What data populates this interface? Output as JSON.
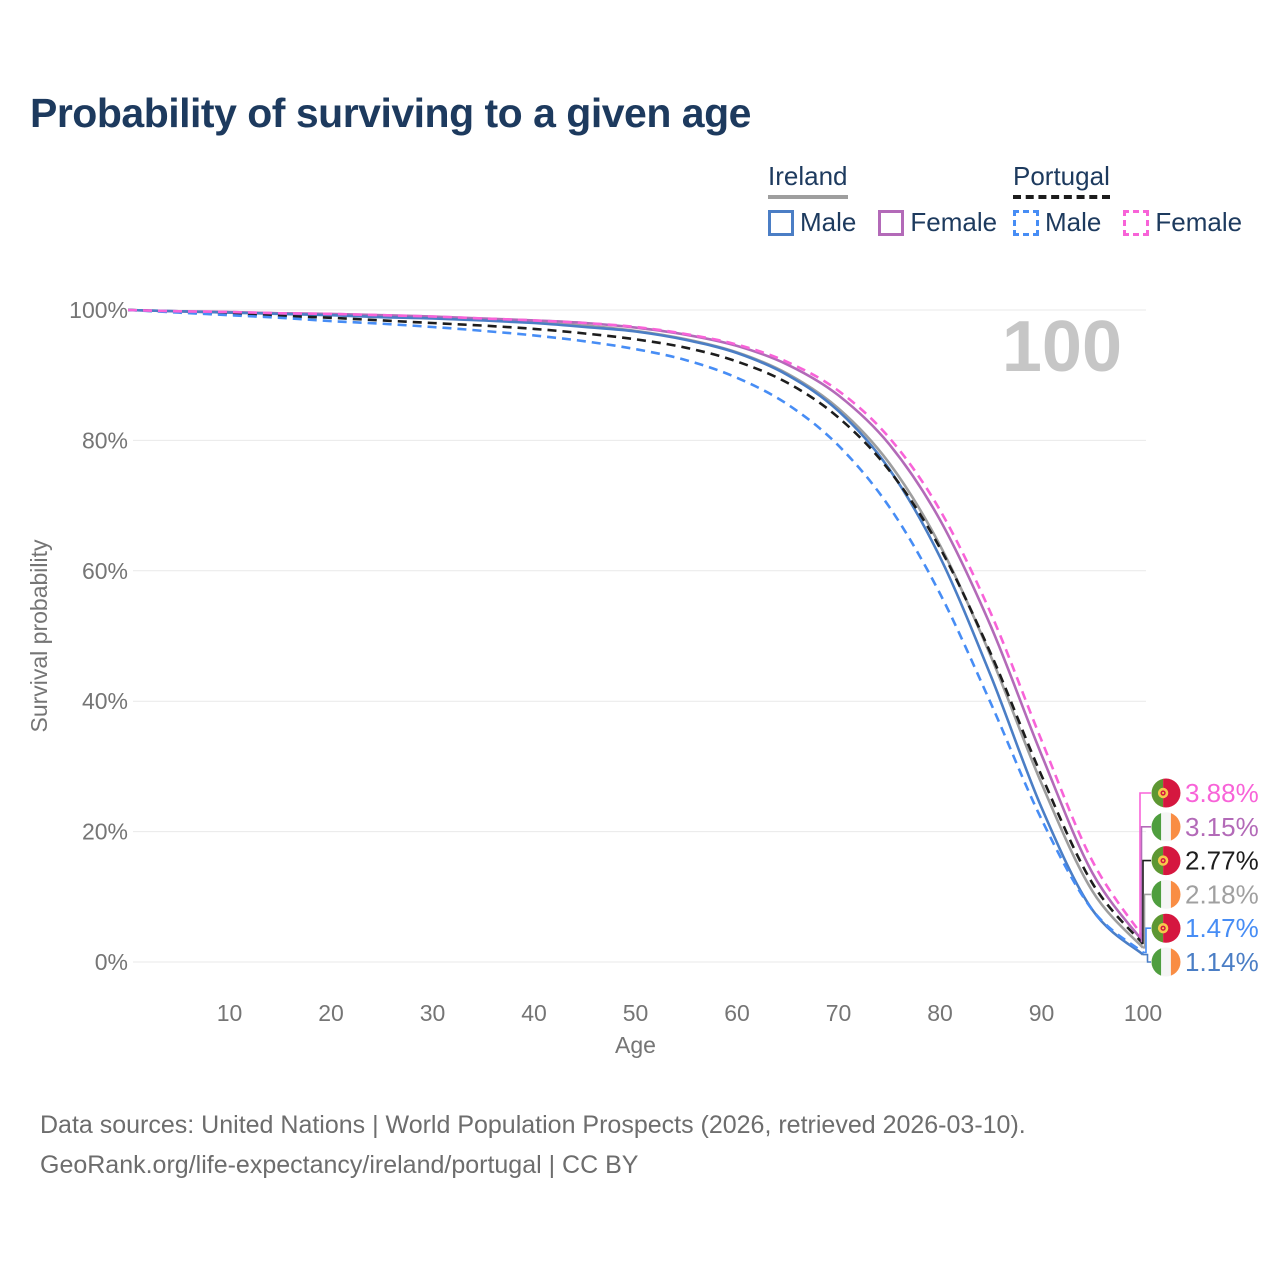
{
  "title": "Probability of surviving to a given age",
  "watermark_age": "100",
  "legend": {
    "groups": [
      {
        "country": "Ireland",
        "line_style": "solid",
        "underline_color": "#9e9e9e",
        "items": [
          {
            "label": "Male",
            "color": "#4b7ec5"
          },
          {
            "label": "Female",
            "color": "#b36ab8"
          }
        ]
      },
      {
        "country": "Portugal",
        "line_style": "dashed",
        "underline_color": "#1c1c1c",
        "items": [
          {
            "label": "Male",
            "color": "#478df5"
          },
          {
            "label": "Female",
            "color": "#f863d8"
          }
        ]
      }
    ]
  },
  "axes": {
    "y_label": "Survival probability",
    "x_label": "Age",
    "y_ticks": [
      {
        "value": 0,
        "label": "0%"
      },
      {
        "value": 20,
        "label": "20%"
      },
      {
        "value": 40,
        "label": "40%"
      },
      {
        "value": 60,
        "label": "60%"
      },
      {
        "value": 80,
        "label": "80%"
      },
      {
        "value": 100,
        "label": "100%"
      }
    ],
    "x_ticks": [
      {
        "value": 10,
        "label": "10"
      },
      {
        "value": 20,
        "label": "20"
      },
      {
        "value": 30,
        "label": "30"
      },
      {
        "value": 40,
        "label": "40"
      },
      {
        "value": 50,
        "label": "50"
      },
      {
        "value": 60,
        "label": "60"
      },
      {
        "value": 70,
        "label": "70"
      },
      {
        "value": 80,
        "label": "80"
      },
      {
        "value": 90,
        "label": "90"
      },
      {
        "value": 100,
        "label": "100"
      }
    ]
  },
  "chart_data": {
    "type": "line",
    "title": "Probability of surviving to a given age",
    "xlabel": "Age",
    "ylabel": "Survival probability",
    "xlim": [
      0,
      100
    ],
    "ylim_pct": [
      0,
      100
    ],
    "grid": "horizontal",
    "x": [
      0,
      5,
      10,
      15,
      20,
      25,
      30,
      35,
      40,
      45,
      50,
      55,
      60,
      65,
      70,
      75,
      80,
      85,
      90,
      95,
      100
    ],
    "series": [
      {
        "name": "Ireland All",
        "country": "Ireland",
        "sex": "all",
        "style": "solid",
        "color": "#9e9e9e",
        "label_color": "#a0a0a0",
        "end_label": "2.18%",
        "values": [
          100,
          99.8,
          99.6,
          99.5,
          99.3,
          99.0,
          98.8,
          98.5,
          98.1,
          97.6,
          96.8,
          95.5,
          93.5,
          90.2,
          84.9,
          76.5,
          63.9,
          46.9,
          27.4,
          10.9,
          2.18
        ]
      },
      {
        "name": "Ireland Female",
        "country": "Ireland",
        "sex": "female",
        "style": "solid",
        "color": "#b36ab8",
        "label_color": "#b36ab8",
        "end_label": "3.15%",
        "values": [
          100,
          99.8,
          99.7,
          99.5,
          99.4,
          99.2,
          99.0,
          98.7,
          98.4,
          98.0,
          97.3,
          96.2,
          94.5,
          91.6,
          86.9,
          79.4,
          67.8,
          51.5,
          31.8,
          13.7,
          3.15
        ]
      },
      {
        "name": "Ireland Male",
        "country": "Ireland",
        "sex": "male",
        "style": "solid",
        "color": "#4b7ec5",
        "label_color": "#4b7ec5",
        "end_label": "1.14%",
        "values": [
          100,
          99.8,
          99.6,
          99.4,
          99.2,
          98.9,
          98.7,
          98.4,
          98.0,
          97.4,
          96.7,
          95.4,
          93.4,
          90.0,
          84.5,
          75.6,
          62.1,
          43.9,
          23.7,
          8.0,
          1.14
        ]
      },
      {
        "name": "Portugal All",
        "country": "Portugal",
        "sex": "all",
        "style": "dashed",
        "color": "#1d1d1d",
        "label_color": "#1d1d1d",
        "end_label": "2.77%",
        "values": [
          100,
          99.7,
          99.4,
          99.1,
          98.8,
          98.4,
          98.0,
          97.6,
          97.1,
          96.4,
          95.5,
          94.2,
          92.1,
          88.8,
          83.5,
          75.4,
          63.5,
          47.3,
          28.6,
          12.1,
          2.77
        ]
      },
      {
        "name": "Portugal Male",
        "country": "Portugal",
        "sex": "male",
        "style": "dashed",
        "color": "#478df5",
        "label_color": "#478df5",
        "end_label": "1.47%",
        "values": [
          100,
          99.6,
          99.2,
          98.8,
          98.3,
          97.9,
          97.4,
          96.8,
          96.1,
          95.2,
          94.0,
          92.3,
          89.6,
          85.5,
          79.2,
          69.8,
          56.5,
          39.7,
          21.9,
          8.0,
          1.47
        ]
      },
      {
        "name": "Portugal Female",
        "country": "Portugal",
        "sex": "female",
        "style": "dashed",
        "color": "#f863d8",
        "label_color": "#f863d8",
        "end_label": "3.88%",
        "values": [
          100,
          99.8,
          99.7,
          99.5,
          99.4,
          99.2,
          99.0,
          98.7,
          98.4,
          98.0,
          97.4,
          96.3,
          94.7,
          92.0,
          87.6,
          80.4,
          69.3,
          53.5,
          34.0,
          15.5,
          3.88
        ]
      }
    ]
  },
  "flag_colors": {
    "ireland": {
      "green": "#4f9e3f",
      "white": "#f5f5f5",
      "orange": "#f98d44"
    },
    "portugal": {
      "green": "#5d9732",
      "red": "#d5173f",
      "yellow": "#f6c94c"
    }
  },
  "footer": {
    "line1": "Data sources: United Nations | World Population Prospects (2026, retrieved 2026-03-10).",
    "line2": "GeoRank.org/life-expectancy/ireland/portugal | CC BY"
  }
}
